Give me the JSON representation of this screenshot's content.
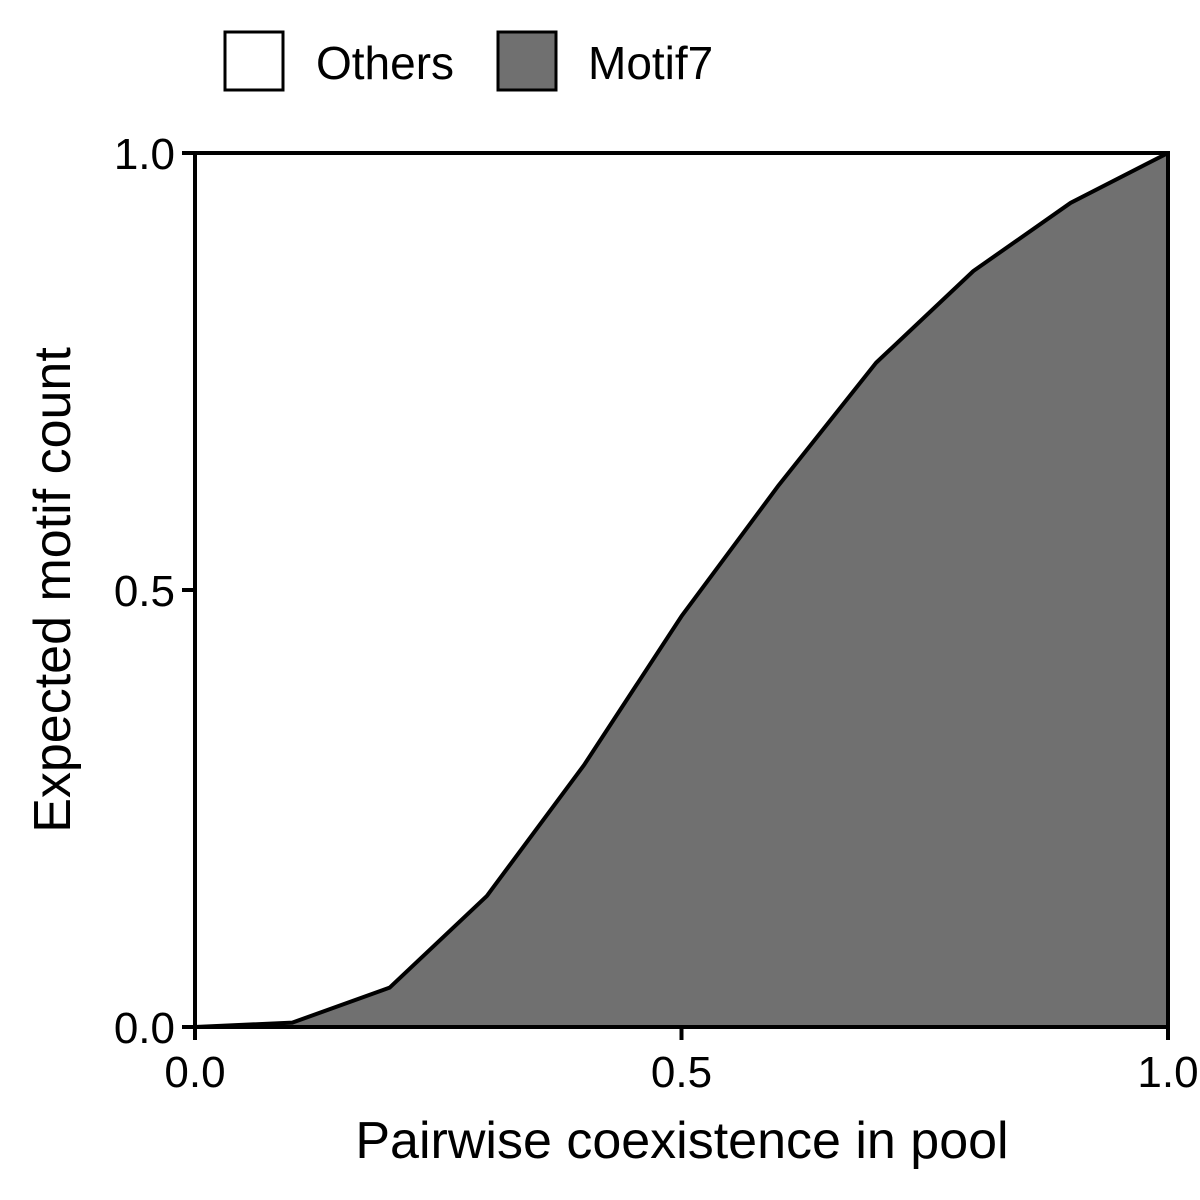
{
  "chart_data": {
    "type": "area",
    "xlabel": "Pairwise coexistence in pool",
    "ylabel": "Expected motif count",
    "xlim": [
      0,
      1
    ],
    "ylim": [
      0,
      1
    ],
    "x_ticks": [
      0.0,
      0.5,
      1.0
    ],
    "y_ticks": [
      0.0,
      0.5,
      1.0
    ],
    "x_tick_labels": [
      "0.0",
      "0.5",
      "1.0"
    ],
    "y_tick_labels": [
      "0.0",
      "0.5",
      "1.0"
    ],
    "grid": false,
    "legend_position": "top",
    "x": [
      0.0,
      0.1,
      0.2,
      0.3,
      0.4,
      0.5,
      0.6,
      0.7,
      0.8,
      0.9,
      1.0
    ],
    "series": [
      {
        "name": "Others",
        "color": "#ffffff",
        "values": [
          1.0,
          0.995,
          0.955,
          0.85,
          0.7,
          0.53,
          0.38,
          0.24,
          0.135,
          0.057,
          0.0
        ]
      },
      {
        "name": "Motif7",
        "color": "#707070",
        "values": [
          0.0,
          0.005,
          0.045,
          0.15,
          0.3,
          0.47,
          0.62,
          0.76,
          0.865,
          0.943,
          1.0
        ]
      }
    ]
  }
}
